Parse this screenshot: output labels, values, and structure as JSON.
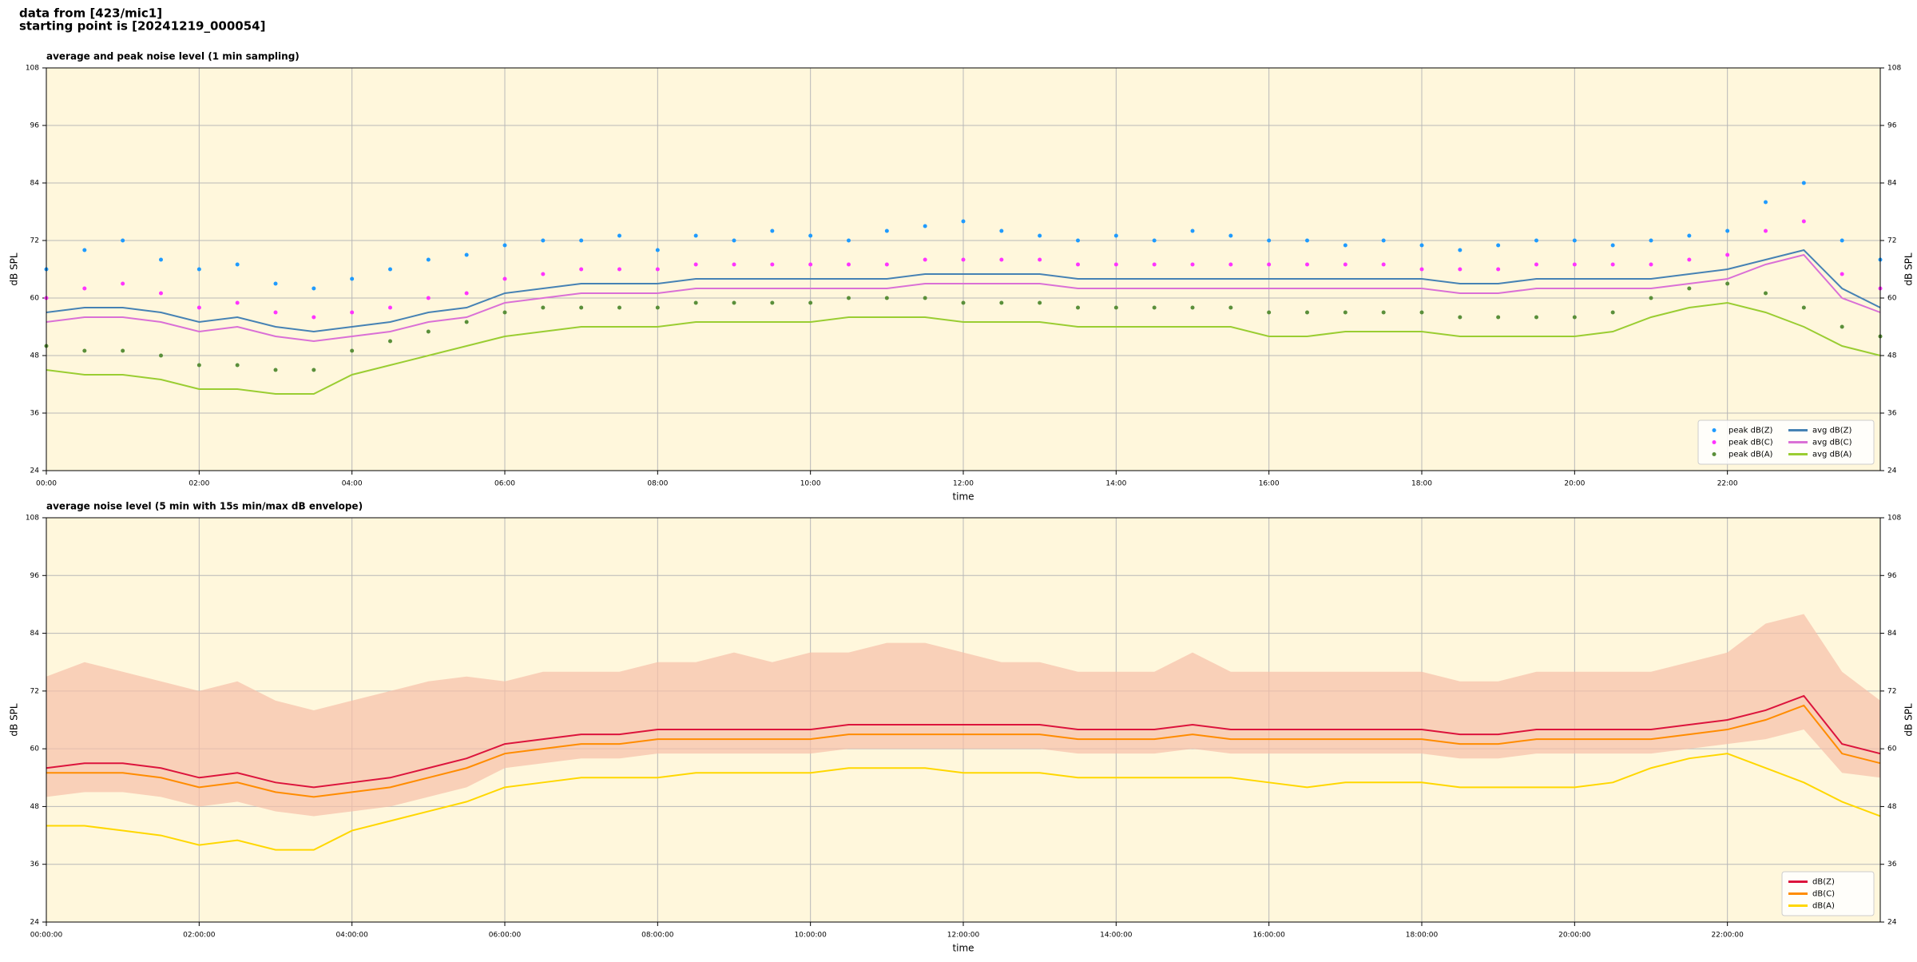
{
  "header": {
    "line1": "data from [423/mic1]",
    "line2": "starting point is [20241219_000054]"
  },
  "chart_data": [
    {
      "type": "line",
      "title": "average and peak noise level (1 min sampling)",
      "xlabel": "time",
      "ylabel": "dB SPL",
      "xlim": [
        0,
        24
      ],
      "ylim": [
        24,
        108
      ],
      "yticks": [
        24,
        36,
        48,
        60,
        72,
        84,
        96,
        108
      ],
      "xticks": [
        {
          "value": 0,
          "label": "00:00"
        },
        {
          "value": 2,
          "label": "02:00"
        },
        {
          "value": 4,
          "label": "04:00"
        },
        {
          "value": 6,
          "label": "06:00"
        },
        {
          "value": 8,
          "label": "08:00"
        },
        {
          "value": 10,
          "label": "10:00"
        },
        {
          "value": 12,
          "label": "12:00"
        },
        {
          "value": 14,
          "label": "14:00"
        },
        {
          "value": 16,
          "label": "16:00"
        },
        {
          "value": 18,
          "label": "18:00"
        },
        {
          "value": 20,
          "label": "20:00"
        },
        {
          "value": 22,
          "label": "22:00"
        }
      ],
      "grid": true,
      "background": "#fff7dc",
      "legend": "lower right",
      "legend_columns": 2,
      "x": [
        0,
        0.5,
        1,
        1.5,
        2,
        2.5,
        3,
        3.5,
        4,
        4.5,
        5,
        5.5,
        6,
        6.5,
        7,
        7.5,
        8,
        8.5,
        9,
        9.5,
        10,
        10.5,
        11,
        11.5,
        12,
        12.5,
        13,
        13.5,
        14,
        14.5,
        15,
        15.5,
        16,
        16.5,
        17,
        17.5,
        18,
        18.5,
        19,
        19.5,
        20,
        20.5,
        21,
        21.5,
        22,
        22.5,
        23,
        23.5,
        24
      ],
      "series": [
        {
          "name": "peak dB(Z)",
          "type": "scatter",
          "color": "#1f9bff",
          "values": [
            66,
            70,
            72,
            68,
            66,
            67,
            63,
            62,
            64,
            66,
            68,
            69,
            71,
            72,
            72,
            73,
            70,
            73,
            72,
            74,
            73,
            72,
            74,
            75,
            76,
            74,
            73,
            72,
            73,
            72,
            74,
            73,
            72,
            72,
            71,
            72,
            71,
            70,
            71,
            72,
            72,
            71,
            72,
            73,
            74,
            80,
            84,
            72,
            68
          ]
        },
        {
          "name": "peak dB(C)",
          "type": "scatter",
          "color": "#ff33ff",
          "values": [
            60,
            62,
            63,
            61,
            58,
            59,
            57,
            56,
            57,
            58,
            60,
            61,
            64,
            65,
            66,
            66,
            66,
            67,
            67,
            67,
            67,
            67,
            67,
            68,
            68,
            68,
            68,
            67,
            67,
            67,
            67,
            67,
            67,
            67,
            67,
            67,
            66,
            66,
            66,
            67,
            67,
            67,
            67,
            68,
            69,
            74,
            76,
            65,
            62
          ]
        },
        {
          "name": "peak dB(A)",
          "type": "scatter",
          "color": "#5a8f3a",
          "values": [
            50,
            49,
            49,
            48,
            46,
            46,
            45,
            45,
            49,
            51,
            53,
            55,
            57,
            58,
            58,
            58,
            58,
            59,
            59,
            59,
            59,
            60,
            60,
            60,
            59,
            59,
            59,
            58,
            58,
            58,
            58,
            58,
            57,
            57,
            57,
            57,
            57,
            56,
            56,
            56,
            56,
            57,
            60,
            62,
            63,
            61,
            58,
            54,
            52
          ]
        },
        {
          "name": "avg dB(Z)",
          "type": "line",
          "color": "#4682b4",
          "values": [
            57,
            58,
            58,
            57,
            55,
            56,
            54,
            53,
            54,
            55,
            57,
            58,
            61,
            62,
            63,
            63,
            63,
            64,
            64,
            64,
            64,
            64,
            64,
            65,
            65,
            65,
            65,
            64,
            64,
            64,
            64,
            64,
            64,
            64,
            64,
            64,
            64,
            63,
            63,
            64,
            64,
            64,
            64,
            65,
            66,
            68,
            70,
            62,
            58
          ]
        },
        {
          "name": "avg dB(C)",
          "type": "line",
          "color": "#da70d6",
          "values": [
            55,
            56,
            56,
            55,
            53,
            54,
            52,
            51,
            52,
            53,
            55,
            56,
            59,
            60,
            61,
            61,
            61,
            62,
            62,
            62,
            62,
            62,
            62,
            63,
            63,
            63,
            63,
            62,
            62,
            62,
            62,
            62,
            62,
            62,
            62,
            62,
            62,
            61,
            61,
            62,
            62,
            62,
            62,
            63,
            64,
            67,
            69,
            60,
            57
          ]
        },
        {
          "name": "avg dB(A)",
          "type": "line",
          "color": "#9acd32",
          "values": [
            45,
            44,
            44,
            43,
            41,
            41,
            40,
            40,
            44,
            46,
            48,
            50,
            52,
            53,
            54,
            54,
            54,
            55,
            55,
            55,
            55,
            56,
            56,
            56,
            55,
            55,
            55,
            54,
            54,
            54,
            54,
            54,
            52,
            52,
            53,
            53,
            53,
            52,
            52,
            52,
            52,
            53,
            56,
            58,
            59,
            57,
            54,
            50,
            48
          ]
        }
      ]
    },
    {
      "type": "line",
      "title": "average noise level (5 min with 15s min/max dB envelope)",
      "xlabel": "time",
      "ylabel": "dB SPL",
      "xlim": [
        0,
        24
      ],
      "ylim": [
        24,
        108
      ],
      "yticks": [
        24,
        36,
        48,
        60,
        72,
        84,
        96,
        108
      ],
      "xticks": [
        {
          "value": 0,
          "label": "00:00:00"
        },
        {
          "value": 2,
          "label": "02:00:00"
        },
        {
          "value": 4,
          "label": "04:00:00"
        },
        {
          "value": 6,
          "label": "06:00:00"
        },
        {
          "value": 8,
          "label": "08:00:00"
        },
        {
          "value": 10,
          "label": "10:00:00"
        },
        {
          "value": 12,
          "label": "12:00:00"
        },
        {
          "value": 14,
          "label": "14:00:00"
        },
        {
          "value": 16,
          "label": "16:00:00"
        },
        {
          "value": 18,
          "label": "18:00:00"
        },
        {
          "value": 20,
          "label": "20:00:00"
        },
        {
          "value": 22,
          "label": "22:00:00"
        }
      ],
      "grid": true,
      "background": "#fff7dc",
      "legend": "lower right",
      "legend_columns": 1,
      "x": [
        0,
        0.5,
        1,
        1.5,
        2,
        2.5,
        3,
        3.5,
        4,
        4.5,
        5,
        5.5,
        6,
        6.5,
        7,
        7.5,
        8,
        8.5,
        9,
        9.5,
        10,
        10.5,
        11,
        11.5,
        12,
        12.5,
        13,
        13.5,
        14,
        14.5,
        15,
        15.5,
        16,
        16.5,
        17,
        17.5,
        18,
        18.5,
        19,
        19.5,
        20,
        20.5,
        21,
        21.5,
        22,
        22.5,
        23,
        23.5,
        24
      ],
      "envelope": {
        "color": "#f6bfa8",
        "high": [
          75,
          78,
          76,
          74,
          72,
          74,
          70,
          68,
          70,
          72,
          74,
          75,
          74,
          76,
          76,
          76,
          78,
          78,
          80,
          78,
          80,
          80,
          82,
          82,
          80,
          78,
          78,
          76,
          76,
          76,
          80,
          76,
          76,
          76,
          76,
          76,
          76,
          74,
          74,
          76,
          76,
          76,
          76,
          78,
          80,
          86,
          88,
          76,
          70
        ],
        "low": [
          50,
          51,
          51,
          50,
          48,
          49,
          47,
          46,
          47,
          48,
          50,
          52,
          56,
          57,
          58,
          58,
          59,
          59,
          59,
          59,
          59,
          60,
          60,
          60,
          60,
          60,
          60,
          59,
          59,
          59,
          60,
          59,
          59,
          59,
          59,
          59,
          59,
          58,
          58,
          59,
          59,
          59,
          59,
          60,
          61,
          62,
          64,
          55,
          54
        ]
      },
      "series": [
        {
          "name": "dB(Z)",
          "type": "line",
          "color": "#dc143c",
          "values": [
            56,
            57,
            57,
            56,
            54,
            55,
            53,
            52,
            53,
            54,
            56,
            58,
            61,
            62,
            63,
            63,
            64,
            64,
            64,
            64,
            64,
            65,
            65,
            65,
            65,
            65,
            65,
            64,
            64,
            64,
            65,
            64,
            64,
            64,
            64,
            64,
            64,
            63,
            63,
            64,
            64,
            64,
            64,
            65,
            66,
            68,
            71,
            61,
            59
          ]
        },
        {
          "name": "dB(C)",
          "type": "line",
          "color": "#ff8c00",
          "values": [
            55,
            55,
            55,
            54,
            52,
            53,
            51,
            50,
            51,
            52,
            54,
            56,
            59,
            60,
            61,
            61,
            62,
            62,
            62,
            62,
            62,
            63,
            63,
            63,
            63,
            63,
            63,
            62,
            62,
            62,
            63,
            62,
            62,
            62,
            62,
            62,
            62,
            61,
            61,
            62,
            62,
            62,
            62,
            63,
            64,
            66,
            69,
            59,
            57
          ]
        },
        {
          "name": "dB(A)",
          "type": "line",
          "color": "#ffd700",
          "values": [
            44,
            44,
            43,
            42,
            40,
            41,
            39,
            39,
            43,
            45,
            47,
            49,
            52,
            53,
            54,
            54,
            54,
            55,
            55,
            55,
            55,
            56,
            56,
            56,
            55,
            55,
            55,
            54,
            54,
            54,
            54,
            54,
            53,
            52,
            53,
            53,
            53,
            52,
            52,
            52,
            52,
            53,
            56,
            58,
            59,
            56,
            53,
            49,
            46
          ]
        }
      ]
    }
  ]
}
